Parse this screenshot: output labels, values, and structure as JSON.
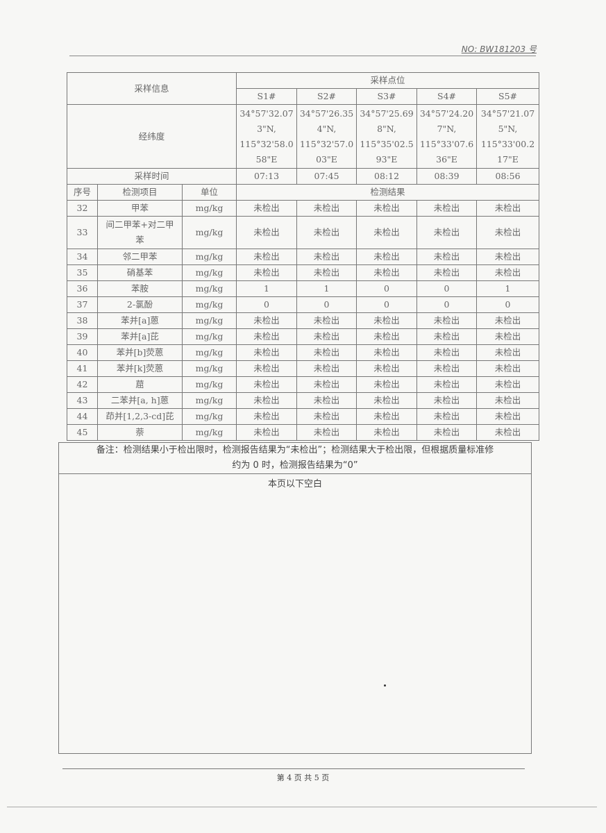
{
  "header": {
    "report_no": "NO: BW181203 号"
  },
  "table": {
    "sampling_info_label": "采样信息",
    "sampling_points_label": "采样点位",
    "points": [
      "S1#",
      "S2#",
      "S3#",
      "S4#",
      "S5#"
    ],
    "coords_label": "经纬度",
    "coords": [
      [
        "34°57'32.07",
        "3\"N,",
        "115°32'58.0",
        "58\"E"
      ],
      [
        "34°57'26.35",
        "4\"N,",
        "115°32'57.0",
        "03\"E"
      ],
      [
        "34°57'25.69",
        "8\"N,",
        "115°35'02.5",
        "93\"E"
      ],
      [
        "34°57'24.20",
        "7\"N,",
        "115°33'07.6",
        "36\"E"
      ],
      [
        "34°57'21.07",
        "5\"N,",
        "115°33'00.2",
        "17\"E"
      ]
    ],
    "time_label": "采样时间",
    "times": [
      "07:13",
      "07:45",
      "08:12",
      "08:39",
      "08:56"
    ],
    "col_no": "序号",
    "col_item": "检测项目",
    "col_unit": "单位",
    "col_result": "检测结果",
    "rows": [
      {
        "no": "32",
        "item": "甲苯",
        "unit": "mg/kg",
        "results": [
          "未检出",
          "未检出",
          "未检出",
          "未检出",
          "未检出"
        ]
      },
      {
        "no": "33",
        "item": "间二甲苯+对二甲苯",
        "unit": "mg/kg",
        "results": [
          "未检出",
          "未检出",
          "未检出",
          "未检出",
          "未检出"
        ]
      },
      {
        "no": "34",
        "item": "邻二甲苯",
        "unit": "mg/kg",
        "results": [
          "未检出",
          "未检出",
          "未检出",
          "未检出",
          "未检出"
        ]
      },
      {
        "no": "35",
        "item": "硝基苯",
        "unit": "mg/kg",
        "results": [
          "未检出",
          "未检出",
          "未检出",
          "未检出",
          "未检出"
        ]
      },
      {
        "no": "36",
        "item": "苯胺",
        "unit": "mg/kg",
        "results": [
          "1",
          "1",
          "0",
          "0",
          "1"
        ]
      },
      {
        "no": "37",
        "item": "2-氯酚",
        "unit": "mg/kg",
        "results": [
          "0",
          "0",
          "0",
          "0",
          "0"
        ]
      },
      {
        "no": "38",
        "item": "苯并[a]蒽",
        "unit": "mg/kg",
        "results": [
          "未检出",
          "未检出",
          "未检出",
          "未检出",
          "未检出"
        ]
      },
      {
        "no": "39",
        "item": "苯并[a]芘",
        "unit": "mg/kg",
        "results": [
          "未检出",
          "未检出",
          "未检出",
          "未检出",
          "未检出"
        ]
      },
      {
        "no": "40",
        "item": "苯并[b]荧蒽",
        "unit": "mg/kg",
        "results": [
          "未检出",
          "未检出",
          "未检出",
          "未检出",
          "未检出"
        ]
      },
      {
        "no": "41",
        "item": "苯并[k]荧蒽",
        "unit": "mg/kg",
        "results": [
          "未检出",
          "未检出",
          "未检出",
          "未检出",
          "未检出"
        ]
      },
      {
        "no": "42",
        "item": "䓛",
        "unit": "mg/kg",
        "results": [
          "未检出",
          "未检出",
          "未检出",
          "未检出",
          "未检出"
        ]
      },
      {
        "no": "43",
        "item": "二苯并[a, h]蒽",
        "unit": "mg/kg",
        "results": [
          "未检出",
          "未检出",
          "未检出",
          "未检出",
          "未检出"
        ]
      },
      {
        "no": "44",
        "item": "茚并[1,2,3-cd]芘",
        "unit": "mg/kg",
        "results": [
          "未检出",
          "未检出",
          "未检出",
          "未检出",
          "未检出"
        ]
      },
      {
        "no": "45",
        "item": "萘",
        "unit": "mg/kg",
        "results": [
          "未检出",
          "未检出",
          "未检出",
          "未检出",
          "未检出"
        ]
      }
    ]
  },
  "notes": {
    "line1": "备注：检测结果小于检出限时，检测报告结果为“未检出”；检测结果大于检出限，但根据质量标准修",
    "line2": "约为 0 时，检测报告结果为“0”"
  },
  "blank_text": "本页以下空白",
  "footer": {
    "page": "第 4 页 共 5 页"
  }
}
